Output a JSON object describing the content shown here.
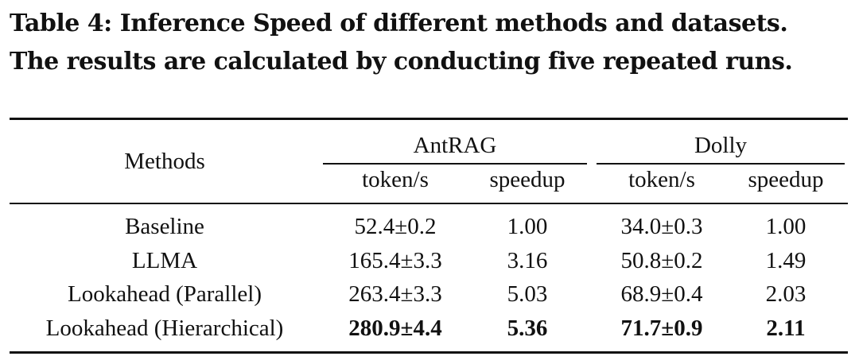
{
  "caption": {
    "line1": "Table 4: Inference Speed of different methods and datasets.",
    "line2": "The results are calculated by conducting five repeated runs."
  },
  "table": {
    "row_header": "Methods",
    "groups": [
      "AntRAG",
      "Dolly"
    ],
    "subheaders": [
      "token/s",
      "speedup",
      "token/s",
      "speedup"
    ],
    "rows": [
      {
        "method": "Baseline",
        "antrag_tokens": "52.4±0.2",
        "antrag_speedup": "1.00",
        "dolly_tokens": "34.0±0.3",
        "dolly_speedup": "1.00"
      },
      {
        "method": "LLMA",
        "antrag_tokens": "165.4±3.3",
        "antrag_speedup": "3.16",
        "dolly_tokens": "50.8±0.2",
        "dolly_speedup": "1.49"
      },
      {
        "method": "Lookahead (Parallel)",
        "antrag_tokens": "263.4±3.3",
        "antrag_speedup": "5.03",
        "dolly_tokens": "68.9±0.4",
        "dolly_speedup": "2.03"
      },
      {
        "method": "Lookahead (Hierarchical)",
        "antrag_tokens": "280.9±4.4",
        "antrag_speedup": "5.36",
        "dolly_tokens": "71.7±0.9",
        "dolly_speedup": "2.11"
      }
    ]
  }
}
